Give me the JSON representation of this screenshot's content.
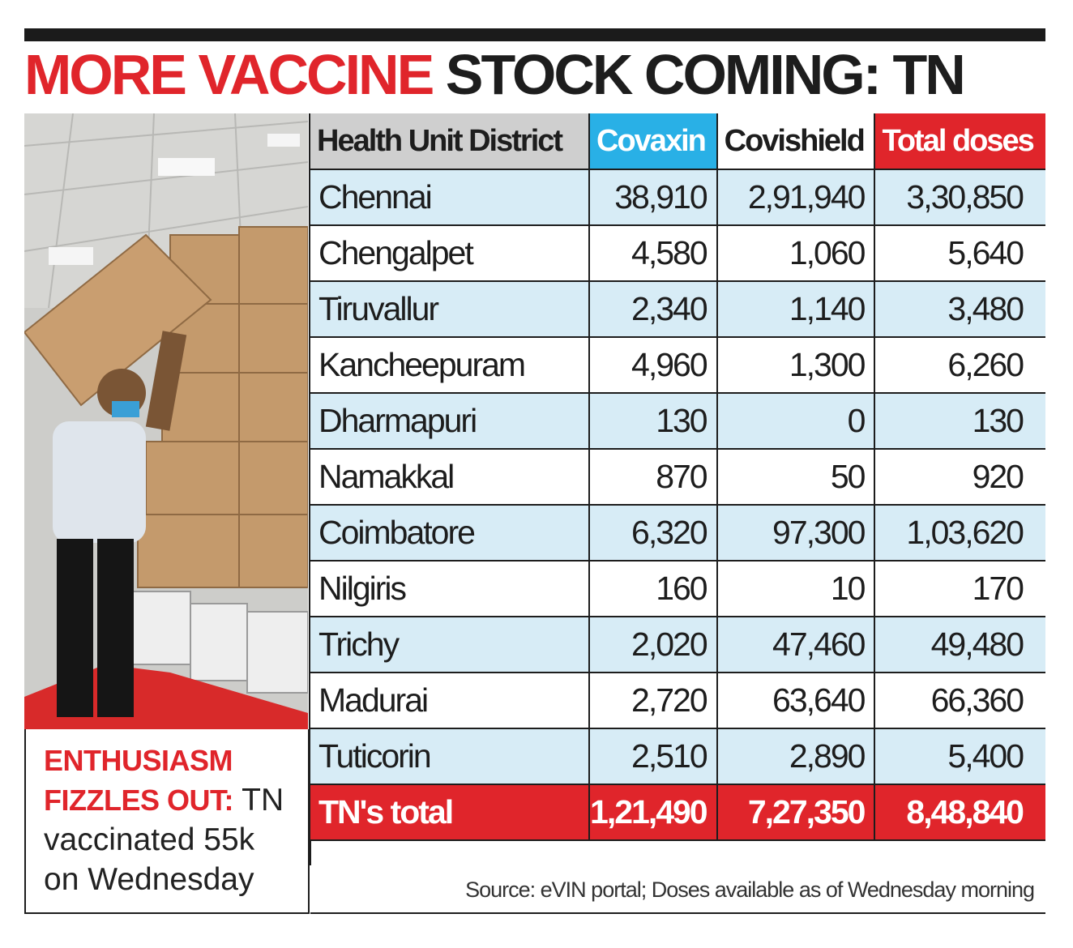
{
  "headline": {
    "red": "MORE VACCINE",
    "dark": "STOCK COMING: TN"
  },
  "caption": {
    "red_line1": "ENTHUSIASM",
    "red_line2": "FIZZLES OUT:",
    "rest1": " TN",
    "rest2": "vaccinated 55k",
    "rest3": "on Wednesday"
  },
  "colors": {
    "accent_red": "#e0252b",
    "covaxin_blue": "#29b0e6",
    "row_tint": "#d7ecf6"
  },
  "table": {
    "headers": [
      "Health Unit District",
      "Covaxin",
      "Covishield",
      "Total doses"
    ],
    "rows": [
      [
        "Chennai",
        "38,910",
        "2,91,940",
        "3,30,850"
      ],
      [
        "Chengalpet",
        "4,580",
        "1,060",
        "5,640"
      ],
      [
        "Tiruvallur",
        "2,340",
        "1,140",
        "3,480"
      ],
      [
        "Kancheepuram",
        "4,960",
        "1,300",
        "6,260"
      ],
      [
        "Dharmapuri",
        "130",
        "0",
        "130"
      ],
      [
        "Namakkal",
        "870",
        "50",
        "920"
      ],
      [
        "Coimbatore",
        "6,320",
        "97,300",
        "1,03,620"
      ],
      [
        "Nilgiris",
        "160",
        "10",
        "170"
      ],
      [
        "Trichy",
        "2,020",
        "47,460",
        "49,480"
      ],
      [
        "Madurai",
        "2,720",
        "63,640",
        "66,360"
      ],
      [
        "Tuticorin",
        "2,510",
        "2,890",
        "5,400"
      ]
    ],
    "total": [
      "TN's total",
      "1,21,490",
      "7,27,350",
      "8,48,840"
    ]
  },
  "source": "Source: eVIN portal; Doses available as of Wednesday morning"
}
